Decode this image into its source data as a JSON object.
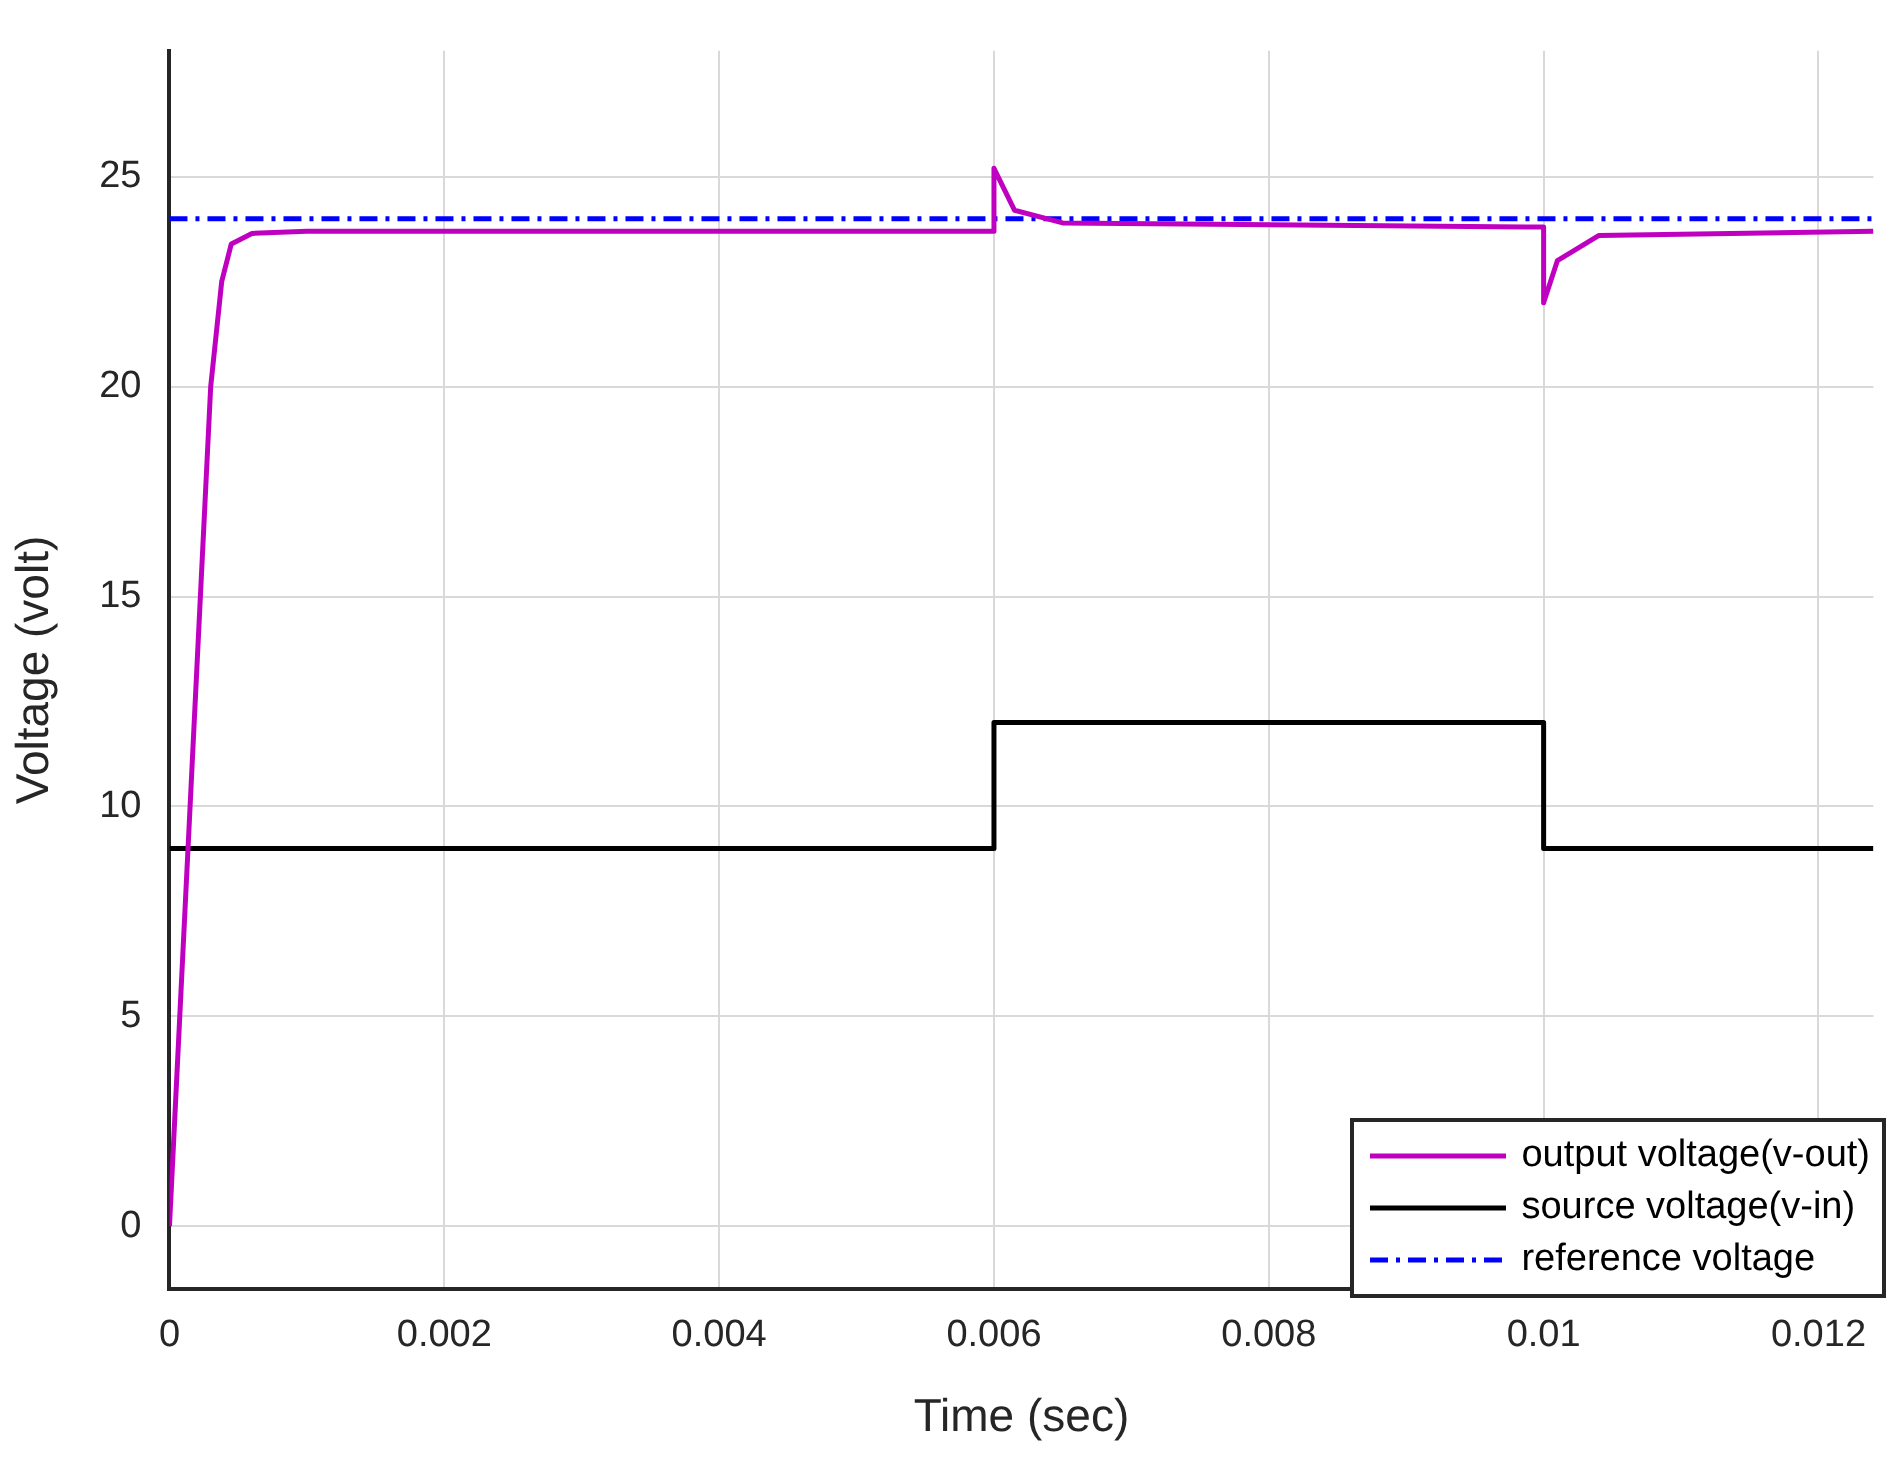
{
  "chart_data": {
    "type": "line",
    "xlabel": "Time (sec)",
    "ylabel": "Voltage (volt)",
    "xlim": [
      0,
      0.0124
    ],
    "xticks": [
      0,
      0.002,
      0.004,
      0.006,
      0.008,
      0.01,
      0.012
    ],
    "ylim": [
      -1.5,
      28
    ],
    "yticks": [
      0,
      5,
      10,
      15,
      20,
      25
    ],
    "grid": true,
    "legend": "bottom right",
    "marker": "none",
    "series": [
      {
        "name": "output voltage(v-out)",
        "color": "#c000c0",
        "line_style": "solid",
        "x": [
          0,
          0.0003,
          0.00038,
          0.00045,
          0.0006,
          0.001,
          0.006,
          0.006,
          0.00615,
          0.0065,
          0.0099,
          0.01,
          0.01,
          0.0101,
          0.0104,
          0.0124
        ],
        "values": [
          0,
          20,
          22.5,
          23.4,
          23.65,
          23.7,
          23.7,
          25.2,
          24.2,
          23.9,
          23.8,
          23.8,
          22,
          23,
          23.6,
          23.7
        ]
      },
      {
        "name": "source voltage(v-in)",
        "color": "#000000",
        "line_style": "solid",
        "x": [
          0,
          0.006,
          0.006,
          0.01,
          0.01,
          0.0124
        ],
        "values": [
          9,
          9,
          12,
          12,
          9,
          9
        ]
      },
      {
        "name": "reference voltage",
        "color": "#0000ff",
        "line_style": "dashdot",
        "x": [
          0,
          0.0124
        ],
        "values": [
          24,
          24
        ]
      }
    ]
  }
}
